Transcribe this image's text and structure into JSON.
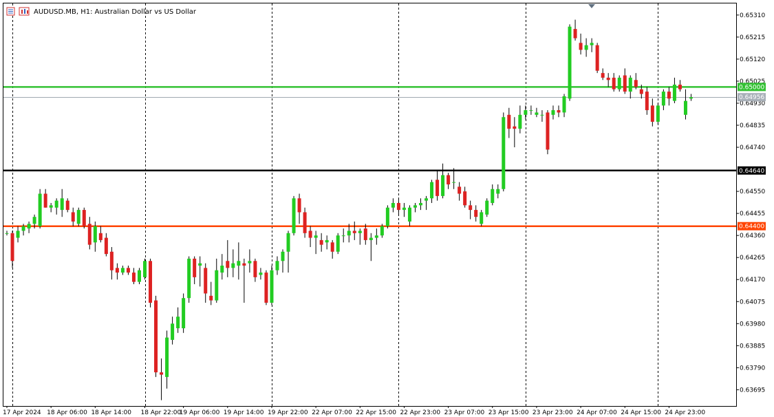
{
  "header": {
    "title": "AUDUSD.MB, H1:  Australian Dollar vs US Dollar",
    "menu_icon": "menu-icon",
    "chart_icon": "chart-type-icon",
    "shift_marker_icon": "chart-shift-triangle-icon"
  },
  "colors": {
    "bull": "#22cc22",
    "bear": "#dd2222",
    "green_line": "#33c233",
    "black_line": "#000000",
    "orange_line": "#ff4400",
    "bid_line": "#a0a8b0"
  },
  "chart_data": {
    "type": "candlestick",
    "symbol": "AUDUSD.MB",
    "timeframe": "H1",
    "ylim": [
      0.63625,
      0.6536
    ],
    "y_ticks": [
      "0.65310",
      "0.65215",
      "0.65120",
      "0.65025",
      "0.64930",
      "0.64835",
      "0.64740",
      "0.64550",
      "0.64455",
      "0.64360",
      "0.64265",
      "0.64170",
      "0.64075",
      "0.63980",
      "0.63885",
      "0.63790",
      "0.63695"
    ],
    "x_labels": [
      "17 Apr 2024",
      "18 Apr 06:00",
      "18 Apr 14:00",
      "18 Apr 22:00",
      "19 Apr 06:00",
      "19 Apr 14:00",
      "19 Apr 22:00",
      "22 Apr 07:00",
      "22 Apr 15:00",
      "22 Apr 23:00",
      "23 Apr 07:00",
      "23 Apr 15:00",
      "23 Apr 23:00",
      "24 Apr 07:00",
      "24 Apr 15:00",
      "24 Apr 23:00"
    ],
    "horizontal_lines": [
      {
        "price": 0.65,
        "label": "0.65000",
        "color": "green_line"
      },
      {
        "price": 0.6464,
        "label": "0.64640",
        "color": "black_line"
      },
      {
        "price": 0.644,
        "label": "0.64400",
        "color": "orange_line"
      }
    ],
    "bid": {
      "price": 0.64956,
      "label": "0.64956"
    },
    "candles": [
      [
        0.6437,
        0.6438,
        0.6436,
        0.6437
      ],
      [
        0.6437,
        0.6438,
        0.6422,
        0.6425
      ],
      [
        0.6435,
        0.644,
        0.6433,
        0.6438
      ],
      [
        0.6438,
        0.6441,
        0.6436,
        0.644
      ],
      [
        0.6439,
        0.6442,
        0.6437,
        0.6441
      ],
      [
        0.6441,
        0.6445,
        0.6439,
        0.6444
      ],
      [
        0.644,
        0.6456,
        0.6439,
        0.6454
      ],
      [
        0.6454,
        0.6456,
        0.6448,
        0.6448
      ],
      [
        0.6448,
        0.645,
        0.6446,
        0.6449
      ],
      [
        0.6448,
        0.6452,
        0.6445,
        0.6451
      ],
      [
        0.6447,
        0.6456,
        0.6444,
        0.6452
      ],
      [
        0.6451,
        0.6452,
        0.6446,
        0.6447
      ],
      [
        0.6446,
        0.6448,
        0.644,
        0.6442
      ],
      [
        0.6441,
        0.6448,
        0.644,
        0.6447
      ],
      [
        0.6447,
        0.6448,
        0.6439,
        0.644
      ],
      [
        0.6441,
        0.6444,
        0.643,
        0.6432
      ],
      [
        0.6433,
        0.6442,
        0.6429,
        0.644
      ],
      [
        0.6437,
        0.644,
        0.6433,
        0.6434
      ],
      [
        0.6435,
        0.6437,
        0.6427,
        0.6428
      ],
      [
        0.6429,
        0.6431,
        0.6417,
        0.6421
      ],
      [
        0.6422,
        0.6424,
        0.6417,
        0.642
      ],
      [
        0.642,
        0.6423,
        0.6419,
        0.6422
      ],
      [
        0.6422,
        0.6423,
        0.6419,
        0.642
      ],
      [
        0.642,
        0.6422,
        0.6415,
        0.6416
      ],
      [
        0.6416,
        0.6422,
        0.6415,
        0.6421
      ],
      [
        0.6418,
        0.6426,
        0.6417,
        0.6425
      ],
      [
        0.6425,
        0.6426,
        0.6405,
        0.6407
      ],
      [
        0.6408,
        0.641,
        0.6375,
        0.6377
      ],
      [
        0.6377,
        0.6383,
        0.6365,
        0.6376
      ],
      [
        0.6375,
        0.6395,
        0.637,
        0.6392
      ],
      [
        0.6391,
        0.6401,
        0.6389,
        0.6398
      ],
      [
        0.6396,
        0.6405,
        0.6394,
        0.6401
      ],
      [
        0.6396,
        0.6411,
        0.6394,
        0.6409
      ],
      [
        0.6409,
        0.6427,
        0.6407,
        0.6426
      ],
      [
        0.6426,
        0.6427,
        0.6415,
        0.6418
      ],
      [
        0.6423,
        0.6427,
        0.6414,
        0.6424
      ],
      [
        0.6422,
        0.6424,
        0.6407,
        0.6411
      ],
      [
        0.641,
        0.6416,
        0.6406,
        0.6408
      ],
      [
        0.6408,
        0.6426,
        0.6407,
        0.6421
      ],
      [
        0.642,
        0.6428,
        0.6417,
        0.6423
      ],
      [
        0.6425,
        0.6434,
        0.6418,
        0.6422
      ],
      [
        0.6422,
        0.643,
        0.6418,
        0.6424
      ],
      [
        0.6423,
        0.6433,
        0.6417,
        0.6425
      ],
      [
        0.6424,
        0.6426,
        0.6407,
        0.6423
      ],
      [
        0.6424,
        0.643,
        0.642,
        0.6425
      ],
      [
        0.6425,
        0.6426,
        0.6416,
        0.6418
      ],
      [
        0.6419,
        0.6422,
        0.6417,
        0.642
      ],
      [
        0.642,
        0.6421,
        0.6406,
        0.6407
      ],
      [
        0.6407,
        0.6423,
        0.6406,
        0.6421
      ],
      [
        0.6421,
        0.6427,
        0.6419,
        0.6425
      ],
      [
        0.6425,
        0.643,
        0.642,
        0.6429
      ],
      [
        0.6429,
        0.6438,
        0.642,
        0.6437
      ],
      [
        0.6437,
        0.6453,
        0.6436,
        0.6452
      ],
      [
        0.6452,
        0.6454,
        0.6441,
        0.6446
      ],
      [
        0.6446,
        0.6448,
        0.6435,
        0.6437
      ],
      [
        0.6438,
        0.644,
        0.6431,
        0.6435
      ],
      [
        0.6435,
        0.6438,
        0.6428,
        0.6436
      ],
      [
        0.6434,
        0.6437,
        0.6429,
        0.6432
      ],
      [
        0.6433,
        0.6436,
        0.643,
        0.6434
      ],
      [
        0.6433,
        0.6434,
        0.6426,
        0.6429
      ],
      [
        0.6429,
        0.6437,
        0.6428,
        0.6436
      ],
      [
        0.6436,
        0.6439,
        0.6433,
        0.6436
      ],
      [
        0.6436,
        0.6441,
        0.6433,
        0.6438
      ],
      [
        0.6438,
        0.6442,
        0.6434,
        0.6437
      ],
      [
        0.6437,
        0.6439,
        0.6432,
        0.6438
      ],
      [
        0.6439,
        0.6441,
        0.6432,
        0.6434
      ],
      [
        0.6434,
        0.6437,
        0.6425,
        0.6435
      ],
      [
        0.6435,
        0.6439,
        0.6432,
        0.6436
      ],
      [
        0.6436,
        0.6441,
        0.6435,
        0.644
      ],
      [
        0.644,
        0.6449,
        0.6439,
        0.6448
      ],
      [
        0.6448,
        0.6452,
        0.6446,
        0.645
      ],
      [
        0.645,
        0.6452,
        0.6445,
        0.6447
      ],
      [
        0.6447,
        0.645,
        0.6444,
        0.6448
      ],
      [
        0.6442,
        0.6449,
        0.644,
        0.6448
      ],
      [
        0.6448,
        0.645,
        0.6446,
        0.6449
      ],
      [
        0.6449,
        0.6452,
        0.6447,
        0.645
      ],
      [
        0.6451,
        0.6453,
        0.6447,
        0.6452
      ],
      [
        0.6452,
        0.646,
        0.645,
        0.6459
      ],
      [
        0.646,
        0.6464,
        0.6451,
        0.6453
      ],
      [
        0.6453,
        0.6467,
        0.6452,
        0.6462
      ],
      [
        0.6462,
        0.6463,
        0.6456,
        0.6458
      ],
      [
        0.6459,
        0.6465,
        0.6456,
        0.6459
      ],
      [
        0.6457,
        0.6459,
        0.6451,
        0.6454
      ],
      [
        0.6455,
        0.6457,
        0.6448,
        0.6449
      ],
      [
        0.6449,
        0.6451,
        0.6443,
        0.6447
      ],
      [
        0.6447,
        0.6449,
        0.6442,
        0.6444
      ],
      [
        0.6441,
        0.6447,
        0.644,
        0.6446
      ],
      [
        0.6445,
        0.6452,
        0.6444,
        0.6451
      ],
      [
        0.645,
        0.6458,
        0.6449,
        0.6456
      ],
      [
        0.6454,
        0.6458,
        0.6452,
        0.6456
      ],
      [
        0.6456,
        0.6489,
        0.6455,
        0.6487
      ],
      [
        0.6488,
        0.6491,
        0.6478,
        0.6482
      ],
      [
        0.6483,
        0.6487,
        0.6474,
        0.6482
      ],
      [
        0.6482,
        0.6492,
        0.648,
        0.6488
      ],
      [
        0.6488,
        0.6492,
        0.6486,
        0.649
      ],
      [
        0.649,
        0.6492,
        0.6488,
        0.649
      ],
      [
        0.6488,
        0.6491,
        0.6487,
        0.6489
      ],
      [
        0.6488,
        0.649,
        0.6485,
        0.6488
      ],
      [
        0.6489,
        0.649,
        0.6471,
        0.6473
      ],
      [
        0.6488,
        0.6492,
        0.6486,
        0.649
      ],
      [
        0.649,
        0.6492,
        0.6487,
        0.6489
      ],
      [
        0.6489,
        0.6497,
        0.6487,
        0.6496
      ],
      [
        0.6495,
        0.6527,
        0.6494,
        0.6526
      ],
      [
        0.6525,
        0.6529,
        0.652,
        0.6521
      ],
      [
        0.6519,
        0.6523,
        0.6514,
        0.6516
      ],
      [
        0.6516,
        0.6521,
        0.6513,
        0.6518
      ],
      [
        0.6518,
        0.6521,
        0.6515,
        0.6519
      ],
      [
        0.6518,
        0.6519,
        0.6506,
        0.6507
      ],
      [
        0.6506,
        0.6508,
        0.6503,
        0.6504
      ],
      [
        0.6504,
        0.6506,
        0.65,
        0.6503
      ],
      [
        0.6504,
        0.6506,
        0.6498,
        0.6499
      ],
      [
        0.6499,
        0.6505,
        0.6498,
        0.6504
      ],
      [
        0.6505,
        0.6508,
        0.6497,
        0.6498
      ],
      [
        0.6498,
        0.6505,
        0.6495,
        0.6504
      ],
      [
        0.6503,
        0.6506,
        0.6499,
        0.65
      ],
      [
        0.6499,
        0.6501,
        0.6495,
        0.6497
      ],
      [
        0.6498,
        0.65,
        0.6488,
        0.649
      ],
      [
        0.6492,
        0.6495,
        0.6483,
        0.6485
      ],
      [
        0.6485,
        0.6493,
        0.6484,
        0.6492
      ],
      [
        0.6492,
        0.6499,
        0.649,
        0.6498
      ],
      [
        0.6498,
        0.65,
        0.6492,
        0.6495
      ],
      [
        0.6494,
        0.6504,
        0.6493,
        0.6501
      ],
      [
        0.6501,
        0.6503,
        0.6498,
        0.6499
      ],
      [
        0.6488,
        0.6499,
        0.6486,
        0.6494
      ],
      [
        0.6495,
        0.6497,
        0.6494,
        0.64956
      ]
    ]
  }
}
